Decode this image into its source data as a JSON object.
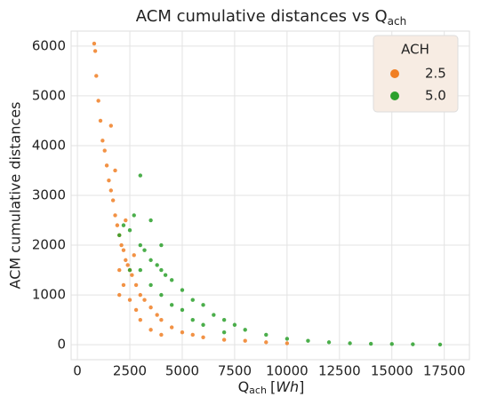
{
  "chart_data": {
    "type": "scatter",
    "title": {
      "text": "ACM cumulative distances vs Q",
      "subscript": "ach"
    },
    "xlabel": {
      "text": "Q",
      "subscript": "ach",
      "unit_open": "[",
      "unit": "Wh",
      "unit_close": "]"
    },
    "ylabel": "ACM cumulative distances",
    "legend_title": "ACH",
    "legend": "upper right",
    "grid": true,
    "xlim": [
      -300,
      18700
    ],
    "xticks": [
      0,
      2500,
      5000,
      7500,
      10000,
      12500,
      15000,
      17500
    ],
    "ylim": [
      -300,
      6300
    ],
    "yticks": [
      0,
      1000,
      2000,
      3000,
      4000,
      5000,
      6000
    ],
    "series": [
      {
        "name": "2.5",
        "color": "#f07f24",
        "x": [
          800,
          850,
          900,
          1000,
          1100,
          1200,
          1300,
          1400,
          1500,
          1600,
          1700,
          1800,
          1900,
          2000,
          2100,
          2200,
          2300,
          2400,
          2500,
          2600,
          2800,
          3000,
          3200,
          3500,
          3800,
          4000,
          4500,
          5000,
          5500,
          6000,
          7000,
          8000,
          9000,
          10000,
          1600,
          1800,
          2000,
          2200,
          2500,
          2800,
          3000,
          3500,
          4000,
          2000,
          2300,
          2700
        ],
        "values": [
          6050,
          5900,
          5400,
          4900,
          4500,
          4100,
          3900,
          3600,
          3300,
          3100,
          2900,
          2600,
          2400,
          2200,
          2000,
          1900,
          1700,
          1600,
          1500,
          1400,
          1200,
          1000,
          900,
          750,
          600,
          500,
          350,
          250,
          200,
          150,
          100,
          80,
          50,
          30,
          4400,
          3500,
          1500,
          1200,
          900,
          700,
          500,
          300,
          200,
          1000,
          2500,
          1800
        ]
      },
      {
        "name": "5.0",
        "color": "#2ca02c",
        "x": [
          2000,
          2200,
          2500,
          2700,
          3000,
          3200,
          3500,
          3800,
          4000,
          4200,
          4500,
          5000,
          5500,
          6000,
          6500,
          7000,
          7500,
          8000,
          9000,
          10000,
          11000,
          12000,
          13000,
          14000,
          15000,
          16000,
          17300,
          2500,
          3000,
          3500,
          4000,
          4500,
          5000,
          5500,
          6000,
          7000,
          3000,
          3500,
          4000
        ],
        "values": [
          2200,
          2400,
          2300,
          2600,
          2000,
          1900,
          1700,
          1600,
          1500,
          1400,
          1300,
          1100,
          900,
          800,
          600,
          500,
          400,
          300,
          200,
          120,
          80,
          50,
          30,
          20,
          15,
          10,
          5,
          1500,
          1500,
          1200,
          1000,
          800,
          700,
          500,
          400,
          250,
          3400,
          2500,
          2000
        ]
      }
    ]
  }
}
